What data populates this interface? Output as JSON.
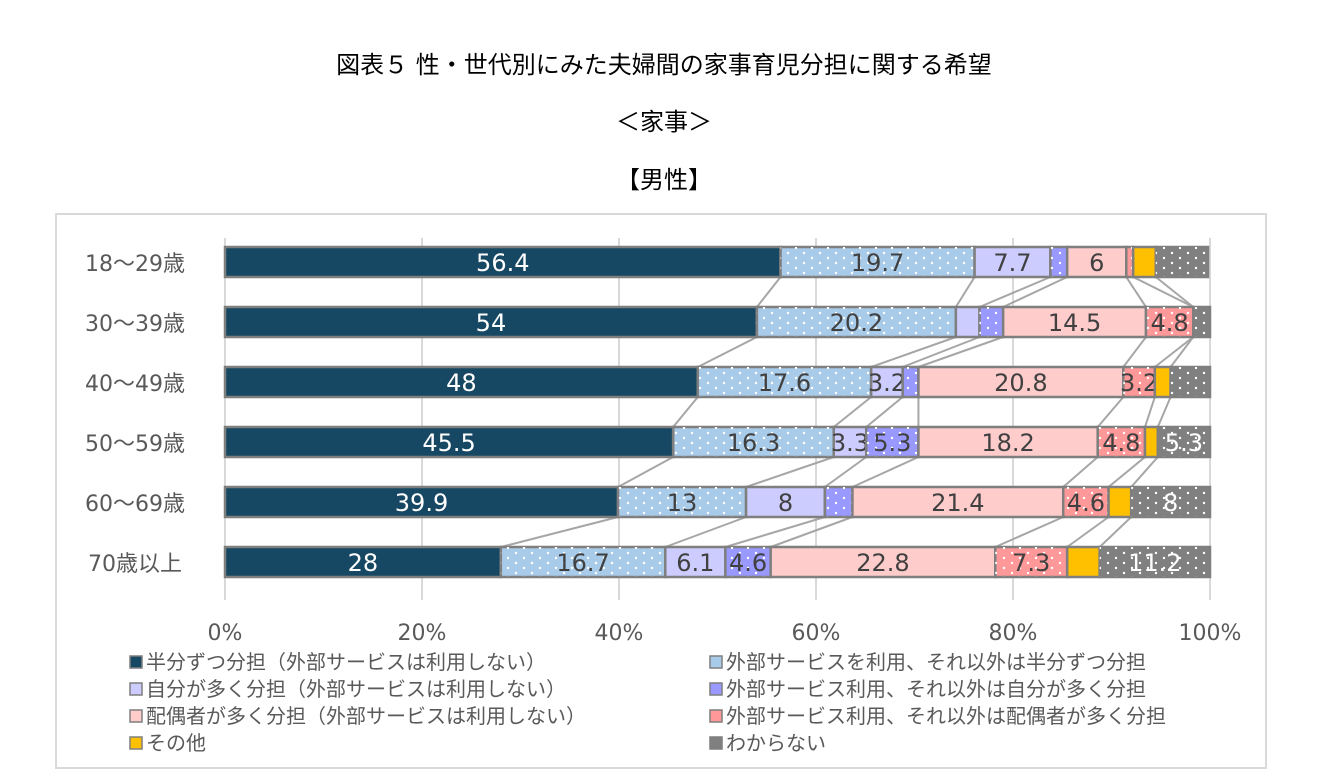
{
  "title": "図表５ 性・世代別にみた夫婦間の家事育児分担に関する希望",
  "subtitle": "＜家事＞",
  "panel": "【男性】",
  "chart_data": {
    "type": "bar",
    "orientation": "horizontal-stacked-100",
    "categories": [
      "18〜29歳",
      "30〜39歳",
      "40〜49歳",
      "50〜59歳",
      "60〜69歳",
      "70歳以上"
    ],
    "xlim": [
      0,
      100
    ],
    "xticks": [
      "0%",
      "20%",
      "40%",
      "60%",
      "80%",
      "100%"
    ],
    "grid": true,
    "legend": "bottom",
    "series": [
      {
        "name": "半分ずつ分担（外部サービスは利用しない）",
        "color": "#174863",
        "pattern": "solid",
        "values": [
          56.4,
          54,
          48,
          45.5,
          39.9,
          28
        ],
        "labels": [
          "56.4",
          "54",
          "48",
          "45.5",
          "39.9",
          "28"
        ]
      },
      {
        "name": "外部サービスを利用、それ以外は半分ずつ分担",
        "color": "#a9cbea",
        "pattern": "dots",
        "values": [
          19.7,
          20.2,
          17.6,
          16.3,
          13,
          16.7
        ],
        "labels": [
          "19.7",
          "20.2",
          "17.6",
          "16.3",
          "13",
          "16.7"
        ]
      },
      {
        "name": "自分が多く分担（外部サービスは利用しない）",
        "color": "#ccccff",
        "pattern": "solid",
        "values": [
          7.7,
          2.4,
          3.2,
          3.3,
          8,
          6.1
        ],
        "labels": [
          "7.7",
          "",
          "3.2",
          "3.3",
          "8",
          "6.1"
        ]
      },
      {
        "name": "外部サービス利用、それ以外は自分が多く分担",
        "color": "#9999ff",
        "pattern": "dots",
        "values": [
          1.7,
          2.4,
          1.6,
          5.3,
          2.8,
          4.6
        ],
        "labels": [
          "",
          "",
          "",
          "5.3",
          "",
          "4.6"
        ]
      },
      {
        "name": "配偶者が多く分担（外部サービスは利用しない）",
        "color": "#ffcccc",
        "pattern": "solid",
        "values": [
          6,
          14.5,
          20.8,
          18.2,
          21.4,
          22.8
        ],
        "labels": [
          "6",
          "14.5",
          "20.8",
          "18.2",
          "21.4",
          "22.8"
        ]
      },
      {
        "name": "外部サービス利用、それ以外は配偶者が多く分担",
        "color": "#ff9999",
        "pattern": "dots",
        "values": [
          0.7,
          4.8,
          3.2,
          4.8,
          4.6,
          7.3
        ],
        "labels": [
          "",
          "4.8",
          "3.2",
          "4.8",
          "4.6",
          "7.3"
        ]
      },
      {
        "name": "その他",
        "color": "#ffc000",
        "pattern": "solid",
        "values": [
          2.3,
          0,
          1.6,
          1.3,
          2.3,
          3.3
        ],
        "labels": [
          "",
          "",
          "",
          "",
          "",
          ""
        ]
      },
      {
        "name": "わからない",
        "color": "#808080",
        "pattern": "dots",
        "values": [
          5.3,
          1.7,
          4.0,
          5.3,
          8,
          11.2
        ],
        "labels": [
          "",
          "",
          "",
          "5.3",
          "8",
          "11.2"
        ]
      }
    ]
  }
}
